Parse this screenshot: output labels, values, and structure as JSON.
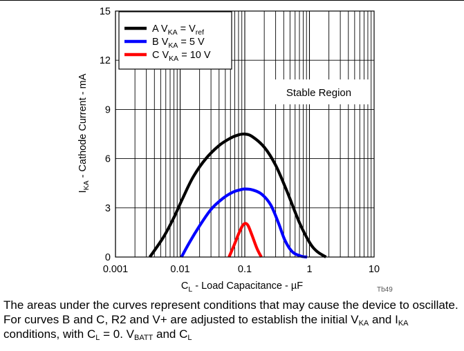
{
  "chart_data": {
    "type": "line",
    "x_scale": "log",
    "xlim": [
      0.001,
      10
    ],
    "ylim": [
      0,
      15
    ],
    "x_ticks": [
      {
        "value": 0.001,
        "label": "0.001"
      },
      {
        "value": 0.01,
        "label": "0.01"
      },
      {
        "value": 0.1,
        "label": "0.1"
      },
      {
        "value": 1,
        "label": "1"
      },
      {
        "value": 10,
        "label": "10"
      }
    ],
    "y_ticks": [
      {
        "value": 0,
        "label": "0"
      },
      {
        "value": 3,
        "label": "3"
      },
      {
        "value": 6,
        "label": "6"
      },
      {
        "value": 9,
        "label": "9"
      },
      {
        "value": 12,
        "label": "12"
      },
      {
        "value": 15,
        "label": "15"
      }
    ],
    "grid": true,
    "legend_position": "top-left",
    "xlabel": {
      "pre": "C",
      "sub": "L",
      "post": " - Load Capacitance - µF"
    },
    "ylabel": {
      "pre": "I",
      "sub": "KA",
      "post": " - Cathode Current - mA"
    },
    "annotation": "Stable Region",
    "figure_code": "Tb49",
    "series": [
      {
        "legend": {
          "pre": "A V",
          "sub": "KA",
          "mid": " = V",
          "sub2": "ref"
        },
        "color": "#000000",
        "x": [
          0.0034,
          0.0055,
          0.008,
          0.011,
          0.016,
          0.025,
          0.04,
          0.06,
          0.08,
          0.1,
          0.13,
          0.2,
          0.3,
          0.45,
          0.7,
          1.0,
          1.3,
          1.8
        ],
        "y": [
          0,
          1.2,
          2.4,
          3.6,
          4.9,
          6.0,
          6.8,
          7.25,
          7.45,
          7.5,
          7.35,
          6.7,
          5.6,
          4.0,
          2.1,
          0.9,
          0.35,
          0
        ]
      },
      {
        "legend": {
          "pre": "B V",
          "sub": "KA",
          "mid": " = 5 V",
          "sub2": ""
        },
        "color": "#0000ff",
        "x": [
          0.0105,
          0.014,
          0.02,
          0.03,
          0.045,
          0.065,
          0.085,
          0.1,
          0.13,
          0.18,
          0.25,
          0.33,
          0.42,
          0.55,
          0.75,
          0.92
        ],
        "y": [
          0,
          0.9,
          1.9,
          2.9,
          3.55,
          3.95,
          4.1,
          4.15,
          4.1,
          3.85,
          3.2,
          2.1,
          1.0,
          0.3,
          0.05,
          0
        ]
      },
      {
        "legend": {
          "pre": "C V",
          "sub": "KA",
          "mid": " = 10 V",
          "sub2": ""
        },
        "color": "#ff0000",
        "x": [
          0.057,
          0.068,
          0.08,
          0.092,
          0.102,
          0.113,
          0.13,
          0.155,
          0.18
        ],
        "y": [
          0,
          0.7,
          1.4,
          1.9,
          2.05,
          1.9,
          1.3,
          0.5,
          0
        ]
      }
    ]
  },
  "caption": {
    "part1": "The areas under the curves represent conditions that may cause the device to oscillate. For curves B and C, R2 and V+ are adjusted to establish the initial V",
    "sub1": "KA",
    "part2": " and I",
    "sub2": "KA",
    "part3": " conditions, with C",
    "sub3": "L",
    "part4": " = 0. V",
    "sub4": "BATT",
    "part5": " and C",
    "sub5": "L"
  }
}
